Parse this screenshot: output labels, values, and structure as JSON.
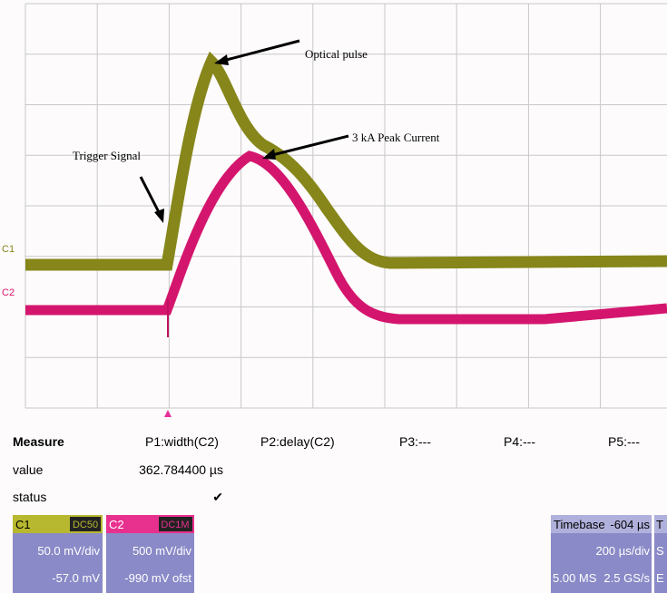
{
  "annotations": {
    "optical_pulse": "Optical pulse",
    "peak_current": "3 kA Peak Current",
    "trigger": "Trigger Signal"
  },
  "channel_markers": [
    "C1",
    "C2"
  ],
  "measure": {
    "headers": [
      "Measure",
      "P1:width(C2)",
      "P2:delay(C2)",
      "P3:---",
      "P4:---",
      "P5:---"
    ],
    "rows": [
      [
        "value",
        "362.784400 µs"
      ],
      [
        "status",
        "✔"
      ]
    ]
  },
  "channels": [
    {
      "name": "C1",
      "coupling": "DC50",
      "scale": "50.0 mV/div",
      "offset": "-57.0 mV"
    },
    {
      "name": "C2",
      "coupling": "DC1M",
      "scale": "500 mV/div",
      "offset": "-990 mV ofst"
    }
  ],
  "timebase": {
    "label": "Timebase",
    "delay": "-604 µs",
    "scale": "200 µs/div",
    "samples": "5.00 MS",
    "rate": "2.5 GS/s"
  },
  "cut_off": [
    "T",
    "S",
    "E"
  ]
}
